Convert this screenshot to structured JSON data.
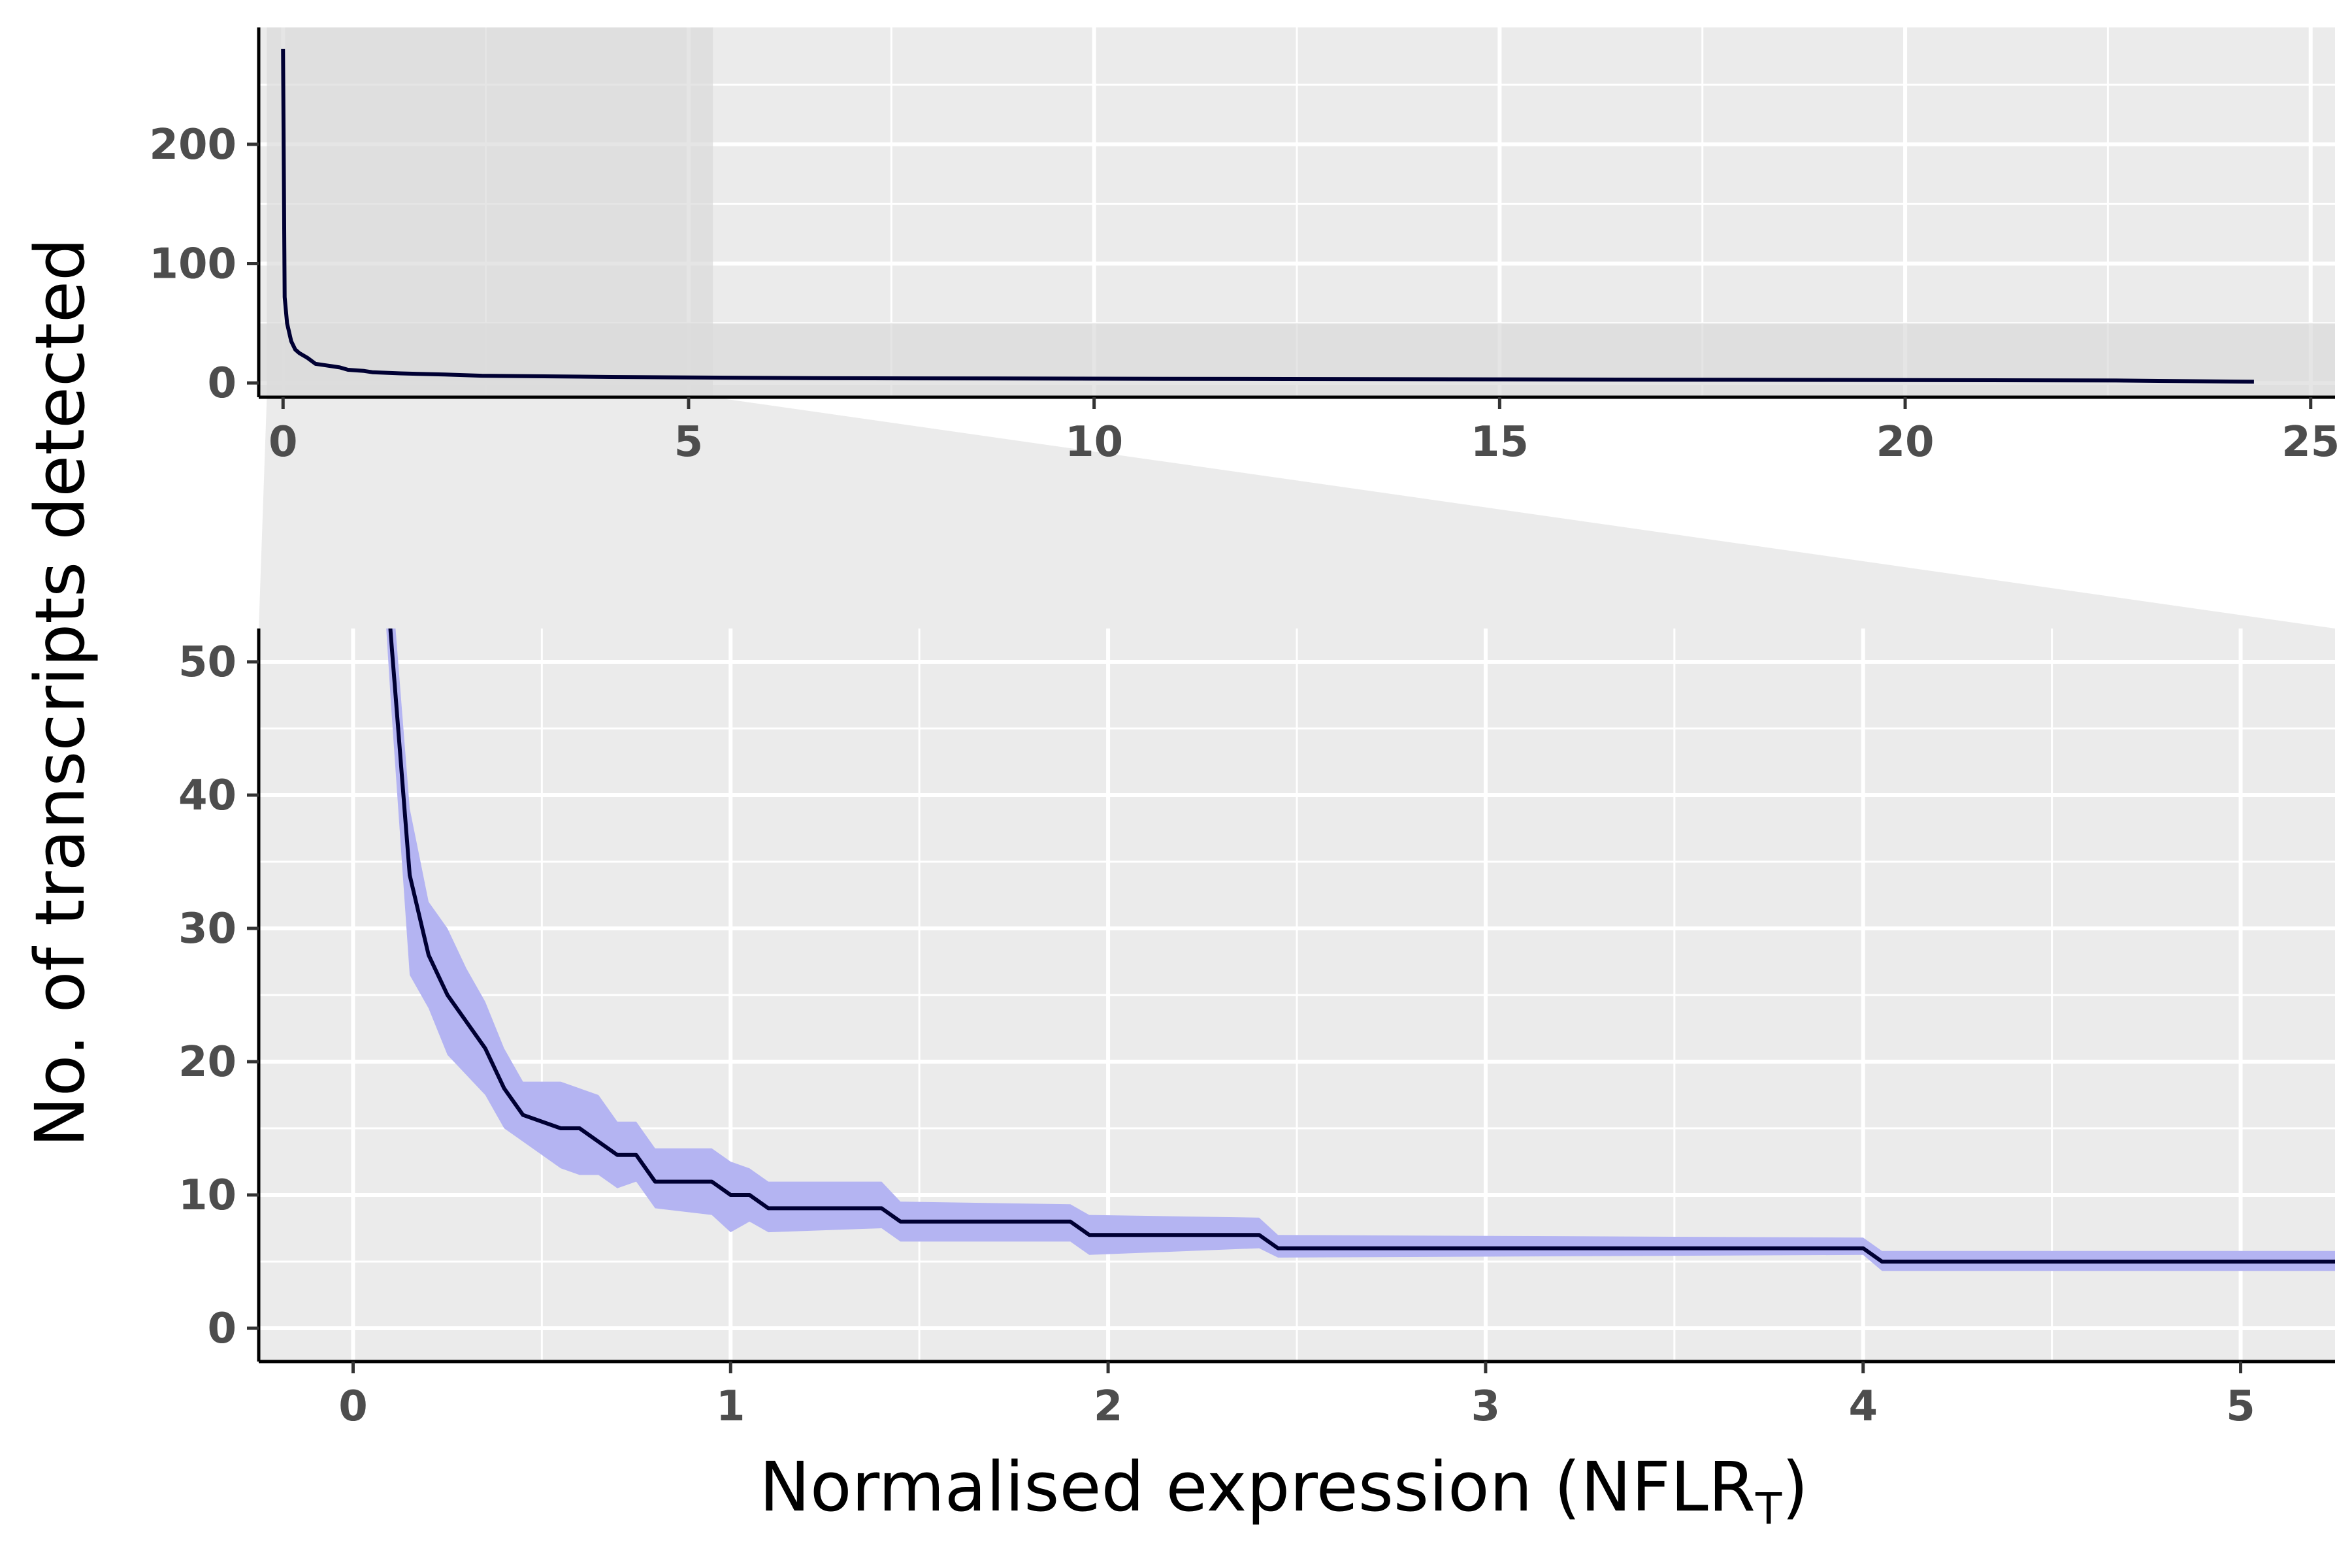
{
  "colors": {
    "panel_bg": "#ebebeb",
    "grid": "#ffffff",
    "line": "#000033",
    "ribbon": "#b4b4f2",
    "zoom_highlight": "#dadada",
    "axis": "#000000",
    "tick_text": "#4d4d4d"
  },
  "y_title": "No. of transcripts detected",
  "x_title": {
    "main": "Normalised expression (NFLR",
    "sub": "T",
    "close": ")"
  },
  "chart_data": [
    {
      "type": "line",
      "panel": "overview",
      "xlim": [
        -0.3,
        25.3
      ],
      "ylim": [
        -12,
        298
      ],
      "xticks": [
        0,
        5,
        10,
        15,
        20,
        25
      ],
      "xtick_labels": [
        "0",
        "5",
        "10",
        "15",
        "20",
        "25"
      ],
      "yticks": [
        0,
        100,
        200
      ],
      "ytick_labels": [
        "0",
        "100",
        "200"
      ],
      "grid": true,
      "zoom_region": {
        "x": [
          -0.2,
          5.3
        ],
        "y": [
          0,
          50
        ]
      },
      "x": [
        0,
        0.02,
        0.05,
        0.1,
        0.15,
        0.2,
        0.3,
        0.4,
        0.5,
        0.6,
        0.7,
        0.8,
        1.0,
        1.1,
        1.45,
        2.0,
        2.45,
        4.05,
        6.5,
        15,
        22.6,
        24.3
      ],
      "y": [
        280,
        72,
        50,
        35,
        28,
        25,
        21,
        16,
        15,
        14,
        13,
        11,
        10,
        9,
        8,
        7,
        6,
        5,
        4,
        3,
        2,
        1
      ]
    },
    {
      "type": "line",
      "panel": "zoom",
      "xlim": [
        -0.25,
        5.25
      ],
      "ylim": [
        -2.5,
        52.5
      ],
      "xticks": [
        0,
        1,
        2,
        3,
        4,
        5
      ],
      "xtick_labels": [
        "0",
        "1",
        "2",
        "3",
        "4",
        "5"
      ],
      "yticks": [
        0,
        10,
        20,
        30,
        40,
        50
      ],
      "ytick_labels": [
        "0",
        "10",
        "20",
        "30",
        "40",
        "50"
      ],
      "grid": true,
      "x": [
        0.08,
        0.1,
        0.15,
        0.2,
        0.25,
        0.3,
        0.35,
        0.4,
        0.45,
        0.55,
        0.6,
        0.65,
        0.7,
        0.75,
        0.8,
        0.95,
        1.0,
        1.05,
        1.1,
        1.4,
        1.45,
        1.9,
        1.95,
        2.4,
        2.45,
        4.0,
        4.05,
        5.25
      ],
      "y": [
        60,
        52,
        34,
        28,
        25,
        23,
        21,
        18,
        16,
        15,
        15,
        14,
        13,
        13,
        11,
        11,
        10,
        10,
        9,
        9,
        8,
        8,
        7,
        7,
        6,
        6,
        5,
        5
      ],
      "ribbon_lower": [
        56,
        47,
        26.5,
        24,
        20.5,
        19,
        17.5,
        15,
        14,
        12,
        11.5,
        11.5,
        10.5,
        11,
        9,
        8.5,
        7.2,
        8,
        7.2,
        7.5,
        6.5,
        6.5,
        5.5,
        6,
        5.3,
        5.5,
        4.3,
        4.3
      ],
      "ribbon_upper": [
        64,
        57,
        39,
        32,
        30,
        27,
        24.5,
        21,
        18.5,
        18.5,
        18,
        17.5,
        15.5,
        15.5,
        13.5,
        13.5,
        12.5,
        12,
        11,
        11,
        9.5,
        9.3,
        8.5,
        8.3,
        7,
        6.8,
        5.8,
        5.8
      ]
    }
  ]
}
